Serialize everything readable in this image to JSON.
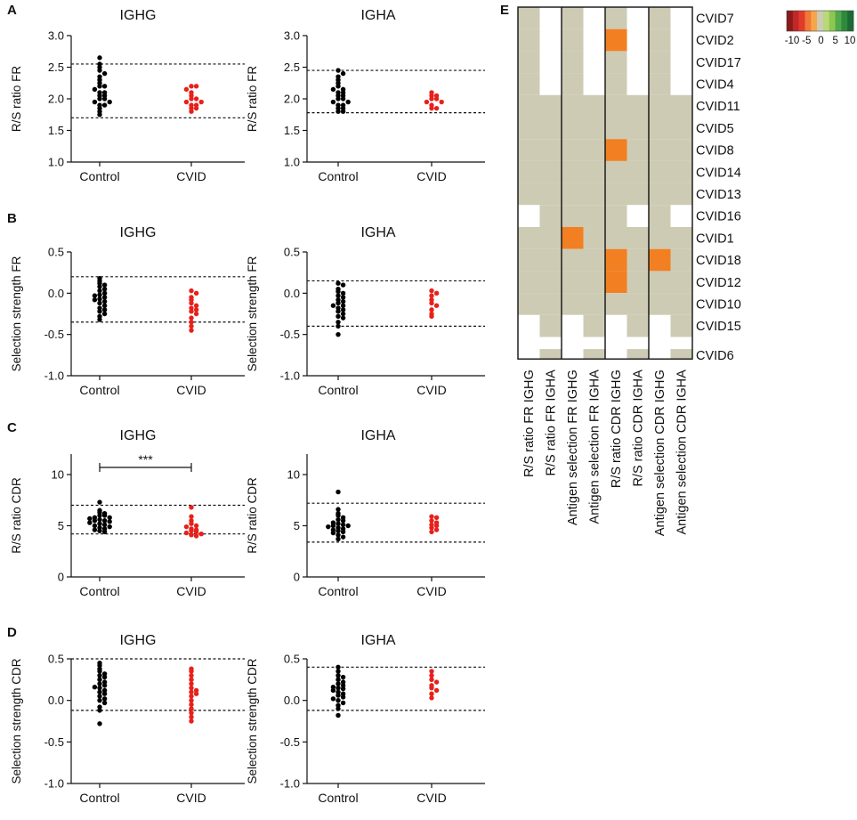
{
  "figure": {
    "type": "multi-panel scientific figure"
  },
  "chart_data": [
    {
      "type": "scatter",
      "panel": "A",
      "title": "IGHG",
      "ylabel": "R/S ratio FR",
      "categories": [
        "Control",
        "CVID"
      ],
      "ylim": [
        1.0,
        3.0
      ],
      "yticks": [
        "1.0",
        "1.5",
        "2.0",
        "2.5",
        "3.0"
      ],
      "reference_lines": [
        2.55,
        1.7
      ],
      "series": [
        {
          "name": "Control",
          "color": "#000000",
          "values": [
            2.65,
            2.55,
            2.5,
            2.45,
            2.4,
            2.35,
            2.3,
            2.25,
            2.2,
            2.2,
            2.15,
            2.1,
            2.1,
            2.05,
            2.05,
            2.0,
            2.0,
            1.95,
            1.95,
            1.9,
            1.9,
            1.85,
            1.8,
            1.75
          ]
        },
        {
          "name": "CVID",
          "color": "#e8201a",
          "values": [
            2.2,
            2.2,
            2.15,
            2.1,
            2.05,
            2.0,
            2.0,
            1.95,
            1.95,
            1.9,
            1.9,
            1.85,
            1.85,
            1.8
          ]
        }
      ]
    },
    {
      "type": "scatter",
      "panel": "A",
      "title": "IGHA",
      "ylabel": "R/S ratio FR",
      "categories": [
        "Control",
        "CVID"
      ],
      "ylim": [
        1.0,
        3.0
      ],
      "yticks": [
        "1.0",
        "1.5",
        "2.0",
        "2.5",
        "3.0"
      ],
      "reference_lines": [
        2.45,
        1.78
      ],
      "series": [
        {
          "name": "Control",
          "color": "#000000",
          "values": [
            2.45,
            2.4,
            2.35,
            2.3,
            2.25,
            2.2,
            2.15,
            2.15,
            2.1,
            2.1,
            2.05,
            2.05,
            2.0,
            2.0,
            1.95,
            1.95,
            1.9,
            1.9,
            1.85,
            1.85,
            1.8,
            1.8
          ]
        },
        {
          "name": "CVID",
          "color": "#e8201a",
          "values": [
            2.1,
            2.05,
            2.05,
            2.0,
            2.0,
            1.95,
            1.95,
            1.9,
            1.85,
            1.85
          ]
        }
      ]
    },
    {
      "type": "scatter",
      "panel": "B",
      "title": "IGHG",
      "ylabel": "Selection strength FR",
      "categories": [
        "Control",
        "CVID"
      ],
      "ylim": [
        -1.0,
        0.5
      ],
      "yticks": [
        "-1.0",
        "-0.5",
        "0.0",
        "0.5"
      ],
      "reference_lines": [
        0.2,
        -0.35
      ],
      "series": [
        {
          "name": "Control",
          "color": "#000000",
          "values": [
            0.18,
            0.15,
            0.12,
            0.1,
            0.08,
            0.05,
            0.03,
            0.0,
            -0.02,
            -0.05,
            -0.07,
            -0.1,
            -0.12,
            -0.15,
            -0.18,
            -0.2,
            -0.22,
            -0.25,
            -0.28,
            -0.32,
            -0.08,
            -0.03
          ]
        },
        {
          "name": "CVID",
          "color": "#e8201a",
          "values": [
            0.03,
            0.0,
            -0.05,
            -0.08,
            -0.12,
            -0.15,
            -0.18,
            -0.2,
            -0.22,
            -0.25,
            -0.3,
            -0.35,
            -0.4,
            -0.45
          ]
        }
      ]
    },
    {
      "type": "scatter",
      "panel": "B",
      "title": "IGHA",
      "ylabel": "Selection strength FR",
      "categories": [
        "Control",
        "CVID"
      ],
      "ylim": [
        -1.0,
        0.5
      ],
      "yticks": [
        "-1.0",
        "-0.5",
        "0.0",
        "0.5"
      ],
      "reference_lines": [
        0.15,
        -0.4
      ],
      "series": [
        {
          "name": "Control",
          "color": "#000000",
          "values": [
            0.12,
            0.1,
            0.05,
            0.02,
            0.0,
            -0.03,
            -0.05,
            -0.08,
            -0.1,
            -0.12,
            -0.15,
            -0.15,
            -0.18,
            -0.2,
            -0.22,
            -0.25,
            -0.28,
            -0.3,
            -0.35,
            -0.4,
            -0.5
          ]
        },
        {
          "name": "CVID",
          "color": "#e8201a",
          "values": [
            0.03,
            0.0,
            -0.03,
            -0.08,
            -0.12,
            -0.15,
            -0.2,
            -0.25,
            -0.28
          ]
        }
      ]
    },
    {
      "type": "scatter",
      "panel": "C",
      "title": "IGHG",
      "ylabel": "R/S ratio CDR",
      "categories": [
        "Control",
        "CVID"
      ],
      "ylim": [
        0,
        12
      ],
      "yticks": [
        "0",
        "5",
        "10"
      ],
      "reference_lines": [
        7.0,
        4.2
      ],
      "significance": "***",
      "series": [
        {
          "name": "Control",
          "color": "#000000",
          "values": [
            7.3,
            6.5,
            6.3,
            6.2,
            6.0,
            6.0,
            5.8,
            5.8,
            5.7,
            5.6,
            5.5,
            5.5,
            5.4,
            5.3,
            5.2,
            5.1,
            5.0,
            4.9,
            4.8,
            4.7,
            4.6,
            4.5,
            4.4
          ]
        },
        {
          "name": "CVID",
          "color": "#e8201a",
          "values": [
            6.8,
            5.9,
            5.5,
            5.2,
            5.0,
            4.9,
            4.7,
            4.6,
            4.5,
            4.4,
            4.3,
            4.2,
            4.1,
            4.0
          ]
        }
      ]
    },
    {
      "type": "scatter",
      "panel": "C",
      "title": "IGHA",
      "ylabel": "R/S ratio CDR",
      "categories": [
        "Control",
        "CVID"
      ],
      "ylim": [
        0,
        12
      ],
      "yticks": [
        "0",
        "5",
        "10"
      ],
      "reference_lines": [
        7.2,
        3.4
      ],
      "series": [
        {
          "name": "Control",
          "color": "#000000",
          "values": [
            8.3,
            6.6,
            6.2,
            6.0,
            5.8,
            5.6,
            5.5,
            5.3,
            5.2,
            5.1,
            5.0,
            5.0,
            4.9,
            4.8,
            4.7,
            4.6,
            4.5,
            4.4,
            4.3,
            4.1,
            3.9,
            3.7
          ]
        },
        {
          "name": "CVID",
          "color": "#e8201a",
          "values": [
            5.9,
            5.8,
            5.5,
            5.3,
            5.1,
            5.0,
            4.8,
            4.6,
            4.4
          ]
        }
      ]
    },
    {
      "type": "scatter",
      "panel": "D",
      "title": "IGHG",
      "ylabel": "Selection strength CDR",
      "categories": [
        "Control",
        "CVID"
      ],
      "ylim": [
        -1.0,
        0.5
      ],
      "yticks": [
        "-1.0",
        "-0.5",
        "0.0",
        "0.5"
      ],
      "reference_lines": [
        0.5,
        -0.12
      ],
      "series": [
        {
          "name": "Control",
          "color": "#000000",
          "values": [
            0.45,
            0.42,
            0.38,
            0.35,
            0.32,
            0.3,
            0.28,
            0.25,
            0.22,
            0.2,
            0.18,
            0.16,
            0.15,
            0.12,
            0.1,
            0.08,
            0.05,
            0.02,
            0.0,
            -0.03,
            -0.08,
            -0.12,
            -0.28
          ]
        },
        {
          "name": "CVID",
          "color": "#e8201a",
          "values": [
            0.38,
            0.35,
            0.3,
            0.25,
            0.2,
            0.15,
            0.12,
            0.1,
            0.08,
            0.05,
            0.0,
            -0.05,
            -0.1,
            -0.15,
            -0.2,
            -0.25
          ]
        }
      ]
    },
    {
      "type": "scatter",
      "panel": "D",
      "title": "IGHA",
      "ylabel": "Selection strength CDR",
      "categories": [
        "Control",
        "CVID"
      ],
      "ylim": [
        -1.0,
        0.5
      ],
      "yticks": [
        "-1.0",
        "-0.5",
        "0.0",
        "0.5"
      ],
      "reference_lines": [
        0.4,
        -0.12
      ],
      "series": [
        {
          "name": "Control",
          "color": "#000000",
          "values": [
            0.4,
            0.35,
            0.3,
            0.28,
            0.25,
            0.22,
            0.2,
            0.18,
            0.16,
            0.15,
            0.14,
            0.12,
            0.1,
            0.08,
            0.06,
            0.04,
            0.02,
            0.0,
            -0.03,
            -0.06,
            -0.1,
            -0.18
          ]
        },
        {
          "name": "CVID",
          "color": "#e8201a",
          "values": [
            0.35,
            0.3,
            0.25,
            0.22,
            0.18,
            0.15,
            0.12,
            0.08,
            0.03
          ]
        }
      ]
    },
    {
      "type": "heatmap",
      "panel": "E",
      "rows": [
        "CVID7",
        "CVID2",
        "CVID17",
        "CVID4",
        "CVID11",
        "CVID5",
        "CVID8",
        "CVID14",
        "CVID13",
        "CVID16",
        "CVID1",
        "CVID18",
        "CVID12",
        "CVID10",
        "CVID15",
        "CVID6"
      ],
      "columns": [
        "R/S ratio FR IGHG",
        "R/S ratio FR IGHA",
        "Antigen selection FR IGHG",
        "Antigen selection FR IGHA",
        "R/S ratio CDR IGHG",
        "R/S ratio CDR IGHA",
        "Antigen selection CDR IGHG",
        "Antigen selection CDR IGHA"
      ],
      "note": "cell values: 0 = grey (within normal range), -5 = orange (reduced), null = white (no data)",
      "values": [
        [
          0,
          null,
          0,
          null,
          0,
          null,
          0,
          null
        ],
        [
          0,
          null,
          0,
          null,
          -5,
          null,
          0,
          null
        ],
        [
          0,
          null,
          0,
          null,
          0,
          null,
          0,
          null
        ],
        [
          0,
          null,
          0,
          null,
          0,
          null,
          0,
          null
        ],
        [
          0,
          0,
          0,
          0,
          0,
          0,
          0,
          0
        ],
        [
          0,
          0,
          0,
          0,
          0,
          0,
          0,
          0
        ],
        [
          0,
          0,
          0,
          0,
          -5,
          0,
          0,
          0
        ],
        [
          0,
          0,
          0,
          0,
          0,
          0,
          0,
          0
        ],
        [
          0,
          0,
          0,
          0,
          0,
          0,
          0,
          0
        ],
        [
          null,
          0,
          0,
          0,
          0,
          null,
          0,
          null
        ],
        [
          0,
          0,
          -5,
          0,
          0,
          0,
          0,
          0
        ],
        [
          0,
          0,
          0,
          0,
          -5,
          0,
          -5,
          0
        ],
        [
          0,
          0,
          0,
          0,
          -5,
          0,
          0,
          0
        ],
        [
          0,
          0,
          0,
          0,
          0,
          0,
          0,
          0
        ],
        [
          null,
          0,
          null,
          0,
          null,
          0,
          null,
          0
        ],
        [
          null,
          0,
          null,
          0,
          null,
          0,
          null,
          0
        ]
      ],
      "colorbar": {
        "ticks": [
          "-10",
          "-5",
          "0",
          "5",
          "10"
        ],
        "colors": [
          "#8b1a1a",
          "#c0282a",
          "#e23b2a",
          "#f07838",
          "#f6a64a",
          "#cdcbb4",
          "#b8d87a",
          "#8cc850",
          "#52a84a",
          "#2f8a3c",
          "#1d6b34"
        ]
      }
    }
  ],
  "panel_labels": [
    "A",
    "B",
    "C",
    "D",
    "E"
  ],
  "colors": {
    "control": "#000000",
    "cvid": "#e8201a",
    "grey_cell": "#cdcbb4",
    "orange_cell": "#f27f22"
  }
}
